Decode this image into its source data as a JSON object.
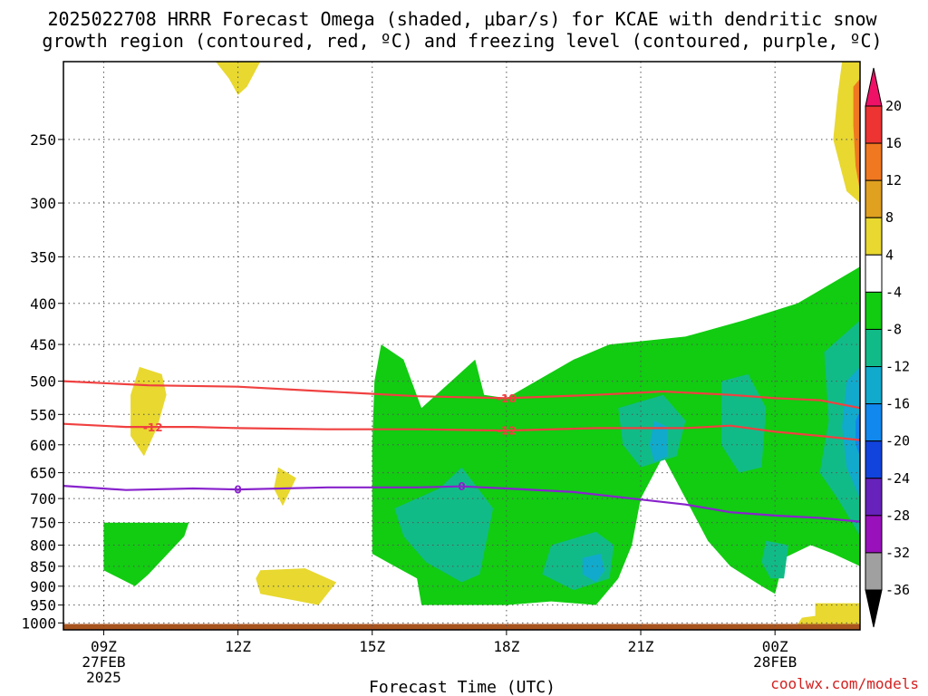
{
  "title_line1": "2025022708 HRRR Forecast Omega (shaded, μbar/s) for KCAE with dendritic snow",
  "title_line2": "growth region (contoured, red, ºC) and freezing level (contoured, purple, ºC)",
  "xlabel": "Forecast Time (UTC)",
  "credit": "coolwx.com/models",
  "chart_data": {
    "type": "heatmap",
    "x_ticks": [
      {
        "hour": 9,
        "lines": [
          "09Z",
          "27FEB",
          "2025"
        ]
      },
      {
        "hour": 12,
        "lines": [
          "12Z"
        ]
      },
      {
        "hour": 15,
        "lines": [
          "15Z"
        ]
      },
      {
        "hour": 18,
        "lines": [
          "18Z"
        ]
      },
      {
        "hour": 21,
        "lines": [
          "21Z"
        ]
      },
      {
        "hour": 24,
        "lines": [
          "00Z",
          "28FEB"
        ]
      }
    ],
    "xlim": [
      8.1,
      25.9
    ],
    "y_ticks": [
      250,
      300,
      350,
      400,
      450,
      500,
      550,
      600,
      650,
      700,
      750,
      800,
      850,
      900,
      950,
      1000
    ],
    "y_axis": "pressure (hPa), log scale, inverted",
    "ylim": [
      200,
      1020
    ],
    "colorbar": {
      "labels": [
        "20",
        "16",
        "12",
        "8",
        "4",
        "-4",
        "-8",
        "-12",
        "-16",
        "-20",
        "-24",
        "-28",
        "-32",
        "-36"
      ],
      "colors": [
        "#ee1166",
        "#ee3333",
        "#f07820",
        "#e0a020",
        "#e8d830",
        "#ffffff",
        "#11cc11",
        "#11bb88",
        "#11aacc",
        "#1188ee",
        "#1144dd",
        "#6622bb",
        "#9911bb",
        "#a0a0a0",
        "#000000"
      ]
    },
    "contours": [
      {
        "label": "-18",
        "color": "#f04040",
        "points": [
          [
            8.1,
            500
          ],
          [
            10,
            506
          ],
          [
            12,
            508
          ],
          [
            14,
            515
          ],
          [
            16,
            522
          ],
          [
            18,
            525
          ],
          [
            20,
            520
          ],
          [
            21.5,
            515
          ],
          [
            23,
            520
          ],
          [
            24,
            525
          ],
          [
            25,
            528
          ],
          [
            25.9,
            540
          ]
        ]
      },
      {
        "label": "-12",
        "color": "#f04040",
        "points": [
          [
            8.1,
            565
          ],
          [
            9.5,
            570
          ],
          [
            11,
            570
          ],
          [
            12,
            572
          ],
          [
            14,
            574
          ],
          [
            16,
            574
          ],
          [
            18,
            576
          ],
          [
            20,
            572
          ],
          [
            22,
            572
          ],
          [
            23,
            568
          ],
          [
            24,
            578
          ],
          [
            25,
            585
          ],
          [
            25.9,
            592
          ]
        ]
      },
      {
        "label": "0",
        "color": "#8822cc",
        "points": [
          [
            8.1,
            675
          ],
          [
            9.5,
            683
          ],
          [
            11,
            680
          ],
          [
            12,
            682
          ],
          [
            14,
            678
          ],
          [
            16,
            678
          ],
          [
            17,
            676
          ],
          [
            18,
            680
          ],
          [
            19.5,
            687
          ],
          [
            21,
            702
          ],
          [
            22,
            712
          ],
          [
            23,
            728
          ],
          [
            24,
            735
          ],
          [
            25,
            740
          ],
          [
            25.9,
            748
          ]
        ]
      }
    ],
    "contour_labels": [
      {
        "text": "-18",
        "hour": 18,
        "p": 525
      },
      {
        "text": "-12",
        "hour": 10.1,
        "p": 571
      },
      {
        "text": "-12",
        "hour": 18,
        "p": 576
      },
      {
        "text": "0",
        "hour": 12,
        "p": 682
      },
      {
        "text": "0",
        "hour": 17,
        "p": 676
      }
    ],
    "shaded_regions": [
      {
        "color": "#e8d830",
        "points": [
          [
            11.5,
            200
          ],
          [
            12.5,
            200
          ],
          [
            12.2,
            215
          ],
          [
            12,
            220
          ],
          [
            11.8,
            210
          ]
        ]
      },
      {
        "color": "#e8d830",
        "points": [
          [
            25.5,
            200
          ],
          [
            25.9,
            200
          ],
          [
            25.9,
            300
          ],
          [
            25.6,
            290
          ],
          [
            25.3,
            250
          ],
          [
            25.4,
            220
          ]
        ]
      },
      {
        "color": "#f07820",
        "points": [
          [
            25.75,
            215
          ],
          [
            25.9,
            210
          ],
          [
            25.9,
            290
          ],
          [
            25.8,
            270
          ],
          [
            25.75,
            240
          ]
        ]
      },
      {
        "color": "#e8d830",
        "points": [
          [
            9.8,
            480
          ],
          [
            10.3,
            490
          ],
          [
            10.4,
            520
          ],
          [
            10.2,
            570
          ],
          [
            9.9,
            620
          ],
          [
            9.6,
            585
          ],
          [
            9.6,
            520
          ]
        ]
      },
      {
        "color": "#e8d830",
        "points": [
          [
            12.9,
            640
          ],
          [
            13.3,
            660
          ],
          [
            13,
            715
          ],
          [
            12.8,
            680
          ]
        ]
      },
      {
        "color": "#e8d830",
        "points": [
          [
            12.5,
            860
          ],
          [
            13.5,
            855
          ],
          [
            14.2,
            890
          ],
          [
            13.8,
            950
          ],
          [
            12.5,
            920
          ],
          [
            12.4,
            880
          ]
        ]
      },
      {
        "color": "#e8d830",
        "points": [
          [
            24.9,
            945
          ],
          [
            25.9,
            945
          ],
          [
            25.9,
            1005
          ],
          [
            24.5,
            1005
          ],
          [
            24.6,
            985
          ],
          [
            24.9,
            980
          ]
        ]
      },
      {
        "color": "#11cc11",
        "points": [
          [
            9,
            750
          ],
          [
            10.9,
            750
          ],
          [
            10.8,
            780
          ],
          [
            10,
            870
          ],
          [
            9.7,
            900
          ],
          [
            9,
            860
          ]
        ]
      },
      {
        "color": "#11cc11",
        "points": [
          [
            15.2,
            450
          ],
          [
            15.7,
            470
          ],
          [
            16.1,
            540
          ],
          [
            17.3,
            470
          ],
          [
            17.5,
            520
          ],
          [
            18,
            525
          ],
          [
            19.5,
            470
          ],
          [
            20.3,
            450
          ],
          [
            22,
            440
          ],
          [
            23.3,
            420
          ],
          [
            24.5,
            400
          ],
          [
            25.9,
            360
          ],
          [
            25.9,
            850
          ],
          [
            25.3,
            820
          ],
          [
            24.8,
            800
          ],
          [
            24.2,
            830
          ],
          [
            24,
            920
          ],
          [
            23.7,
            900
          ],
          [
            23,
            850
          ],
          [
            22.5,
            790
          ],
          [
            21.5,
            620
          ],
          [
            21,
            700
          ],
          [
            20.8,
            800
          ],
          [
            20.5,
            880
          ],
          [
            20,
            950
          ],
          [
            19,
            940
          ],
          [
            18,
            950
          ],
          [
            16.1,
            950
          ],
          [
            16,
            880
          ],
          [
            15.5,
            850
          ],
          [
            15,
            820
          ],
          [
            15,
            600
          ],
          [
            15.05,
            500
          ]
        ]
      },
      {
        "color": "#11bb88",
        "points": [
          [
            15.5,
            720
          ],
          [
            16.5,
            680
          ],
          [
            17,
            640
          ],
          [
            17.7,
            720
          ],
          [
            17.4,
            870
          ],
          [
            17,
            890
          ],
          [
            16.2,
            840
          ],
          [
            15.7,
            780
          ]
        ]
      },
      {
        "color": "#11bb88",
        "points": [
          [
            19,
            800
          ],
          [
            20,
            770
          ],
          [
            20.4,
            800
          ],
          [
            20.3,
            880
          ],
          [
            19.5,
            910
          ],
          [
            18.8,
            870
          ]
        ]
      },
      {
        "color": "#11bb88",
        "points": [
          [
            20.5,
            540
          ],
          [
            21.5,
            520
          ],
          [
            22,
            560
          ],
          [
            21.8,
            620
          ],
          [
            21,
            640
          ],
          [
            20.6,
            600
          ]
        ]
      },
      {
        "color": "#11bb88",
        "points": [
          [
            22.8,
            500
          ],
          [
            23.4,
            490
          ],
          [
            23.8,
            540
          ],
          [
            23.7,
            640
          ],
          [
            23.2,
            650
          ],
          [
            22.8,
            600
          ]
        ]
      },
      {
        "color": "#11bb88",
        "points": [
          [
            25.1,
            460
          ],
          [
            25.9,
            420
          ],
          [
            25.9,
            780
          ],
          [
            25.4,
            700
          ],
          [
            25,
            650
          ],
          [
            25.2,
            560
          ]
        ]
      },
      {
        "color": "#11bb88",
        "points": [
          [
            23.8,
            790
          ],
          [
            24.3,
            800
          ],
          [
            24.2,
            880
          ],
          [
            23.9,
            880
          ],
          [
            23.7,
            840
          ]
        ]
      },
      {
        "color": "#11aacc",
        "points": [
          [
            19.7,
            830
          ],
          [
            20.1,
            820
          ],
          [
            20.2,
            860
          ],
          [
            20,
            890
          ],
          [
            19.7,
            870
          ]
        ]
      },
      {
        "color": "#11aacc",
        "points": [
          [
            21.3,
            560
          ],
          [
            21.6,
            570
          ],
          [
            21.6,
            620
          ],
          [
            21.3,
            630
          ],
          [
            21.2,
            600
          ]
        ]
      },
      {
        "color": "#11aacc",
        "points": [
          [
            25.6,
            500
          ],
          [
            25.9,
            480
          ],
          [
            25.9,
            700
          ],
          [
            25.6,
            640
          ],
          [
            25.5,
            570
          ]
        ]
      },
      {
        "color": "#1188ee",
        "points": [
          [
            25.8,
            560
          ],
          [
            25.9,
            545
          ],
          [
            25.9,
            620
          ],
          [
            25.8,
            600
          ]
        ]
      }
    ],
    "ground_color": "#a85520",
    "grid": "dotted"
  }
}
